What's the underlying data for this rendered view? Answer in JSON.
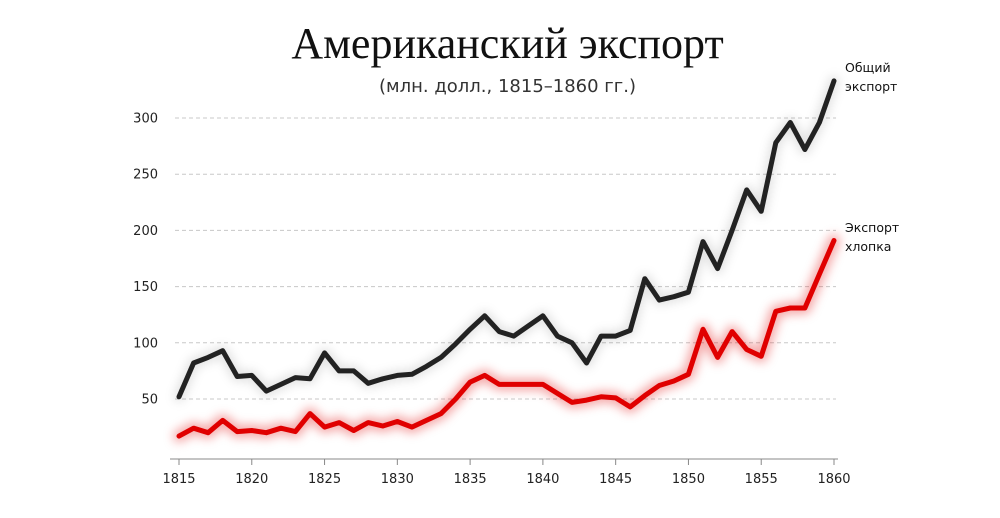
{
  "chart_data": {
    "type": "line",
    "title": "Американский экспорт",
    "subtitle": "(млн. долл., 1815–1860 гг.)",
    "xlabel": "",
    "ylabel": "",
    "xlim": [
      1815,
      1860
    ],
    "ylim": [
      0,
      330
    ],
    "x_ticks": [
      1815,
      1820,
      1825,
      1830,
      1835,
      1840,
      1845,
      1850,
      1855,
      1860
    ],
    "y_ticks": [
      50,
      100,
      150,
      200,
      250,
      300
    ],
    "grid": true,
    "x": [
      1815,
      1816,
      1817,
      1818,
      1819,
      1820,
      1821,
      1822,
      1823,
      1824,
      1825,
      1826,
      1827,
      1828,
      1829,
      1830,
      1831,
      1832,
      1833,
      1834,
      1835,
      1836,
      1837,
      1838,
      1839,
      1840,
      1841,
      1842,
      1843,
      1844,
      1845,
      1846,
      1847,
      1848,
      1849,
      1850,
      1851,
      1852,
      1853,
      1854,
      1855,
      1856,
      1857,
      1858,
      1859,
      1860
    ],
    "series": [
      {
        "name": "Общий экспорт",
        "label_lines": [
          "Общий",
          "экспорт"
        ],
        "color": "#222222",
        "values": [
          52,
          82,
          87,
          93,
          70,
          71,
          57,
          63,
          69,
          68,
          91,
          75,
          75,
          64,
          68,
          71,
          72,
          79,
          87,
          99,
          112,
          124,
          110,
          106,
          115,
          124,
          106,
          100,
          82,
          106,
          106,
          111,
          157,
          138,
          141,
          145,
          190,
          166,
          200,
          236,
          217,
          278,
          296,
          272,
          296,
          333
        ]
      },
      {
        "name": "Экспорт хлопка",
        "label_lines": [
          "Экспорт",
          "хлопка"
        ],
        "color": "#e00000",
        "values": [
          17,
          24,
          20,
          31,
          21,
          22,
          20,
          24,
          21,
          37,
          25,
          29,
          22,
          29,
          26,
          30,
          25,
          31,
          37,
          50,
          65,
          71,
          63,
          63,
          63,
          63,
          55,
          47,
          49,
          52,
          51,
          43,
          53,
          62,
          66,
          72,
          112,
          87,
          110,
          94,
          88,
          128,
          131,
          131,
          161,
          191
        ]
      }
    ]
  }
}
